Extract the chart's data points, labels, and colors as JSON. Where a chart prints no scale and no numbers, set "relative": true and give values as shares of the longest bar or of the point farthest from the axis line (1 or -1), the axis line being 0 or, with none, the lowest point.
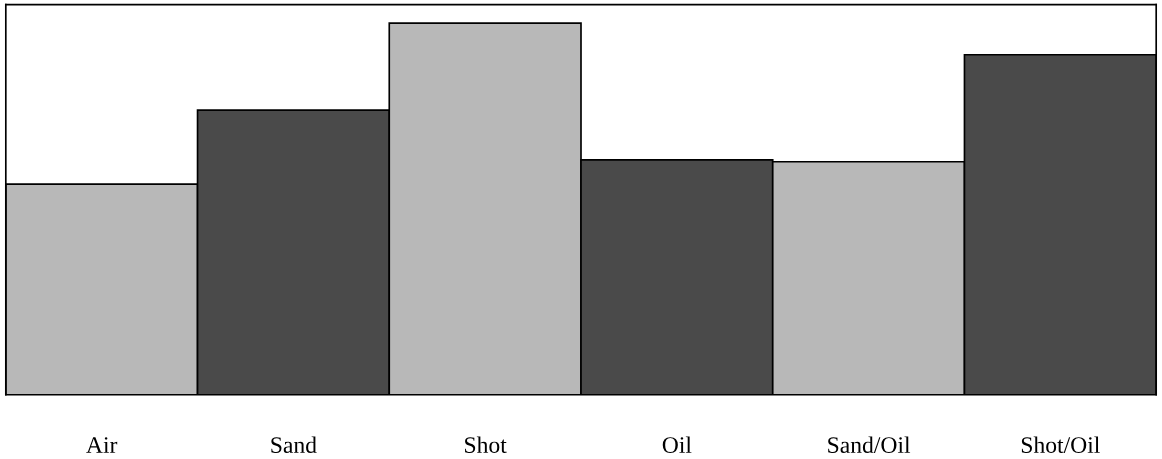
{
  "chart_data": {
    "type": "bar",
    "relative": true,
    "categories": [
      "Air",
      "Sand",
      "Shot",
      "Oil",
      "Sand/Oil",
      "Shot/Oil"
    ],
    "values": [
      0.567,
      0.766,
      1,
      0.632,
      0.627,
      0.915
    ],
    "colors": [
      "#b8b8b8",
      "#4a4a4a",
      "#b8b8b8",
      "#4a4a4a",
      "#b8b8b8",
      "#4a4a4a"
    ]
  }
}
